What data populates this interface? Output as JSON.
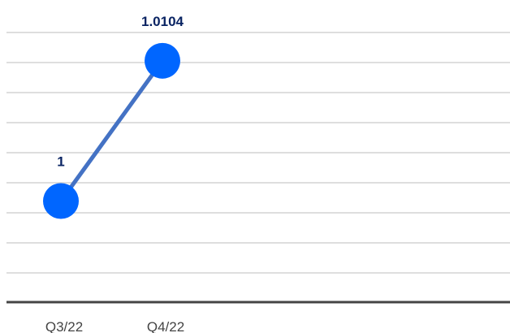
{
  "colors": {
    "line": "#4472C4",
    "marker": "#0066FF",
    "data_label": "#0A2463",
    "grid": "#D3D3D3",
    "axis": "#444444",
    "tick_label": "#444444"
  },
  "chart_data": {
    "type": "line",
    "title": "",
    "xlabel": "",
    "ylabel": "",
    "categories": [
      "Q3/22",
      "Q4/22"
    ],
    "series": [
      {
        "values": [
          1,
          1.0104
        ],
        "data_labels": [
          "1",
          "1.0104"
        ]
      }
    ],
    "ylim": [
      0.9925,
      1.0125
    ],
    "grid": true,
    "legend": "none"
  }
}
